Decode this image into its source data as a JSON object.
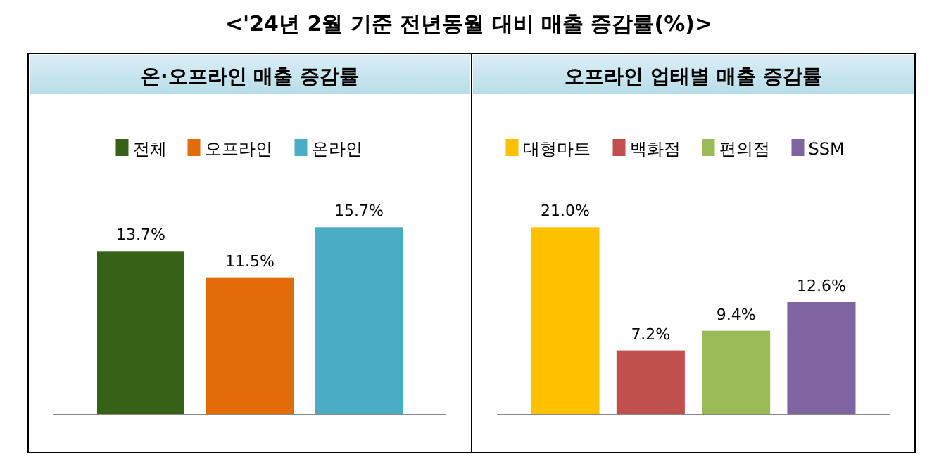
{
  "chart_data": [
    {
      "type": "bar",
      "title": "온·오프라인 매출 증감률",
      "annotations": [
        "<'24년 2월 기준 전년동월 대비 매출 증감률(%)>"
      ],
      "tick_labels": false,
      "categories": [
        "전체",
        "오프라인",
        "온라인"
      ],
      "values": [
        13.7,
        11.5,
        15.7
      ],
      "colors": [
        "#376117",
        "#e26b0a",
        "#4bacc6"
      ],
      "value_labels": [
        "13.7%",
        "11.5%",
        "15.7%"
      ]
    },
    {
      "type": "bar",
      "title": "오프라인 업태별 매출 증감률",
      "tick_labels": false,
      "categories": [
        "대형마트",
        "백화점",
        "편의점",
        "SSM"
      ],
      "values": [
        21.0,
        7.2,
        9.4,
        12.6
      ],
      "colors": [
        "#ffc000",
        "#c0504d",
        "#9bbb59",
        "#8064a2"
      ],
      "value_labels": [
        "21.0%",
        "7.2%",
        "9.4%",
        "12.6%"
      ]
    }
  ]
}
